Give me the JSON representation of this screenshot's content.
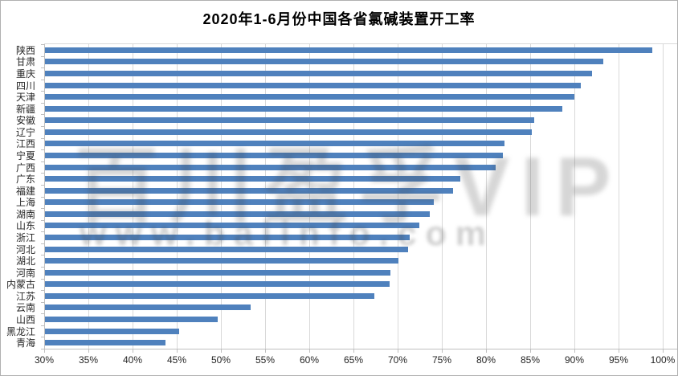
{
  "chart_data": {
    "type": "bar",
    "orientation": "horizontal",
    "title": "2020年1-6月份中国各省氯碱装置开工率",
    "categories": [
      "陕西",
      "甘肃",
      "重庆",
      "四川",
      "天津",
      "新疆",
      "安徽",
      "辽宁",
      "江西",
      "宁夏",
      "广西",
      "广东",
      "福建",
      "上海",
      "湖南",
      "山东",
      "浙江",
      "河北",
      "湖北",
      "河南",
      "内蒙古",
      "江苏",
      "云南",
      "山西",
      "黑龙江",
      "青海"
    ],
    "values": [
      98.7,
      93.2,
      91.9,
      90.6,
      89.9,
      88.5,
      85.4,
      85.1,
      82.0,
      81.8,
      81.0,
      77.0,
      76.2,
      74.0,
      73.5,
      72.4,
      71.3,
      71.1,
      70.0,
      69.1,
      69.0,
      67.3,
      53.3,
      49.5,
      45.2,
      43.6
    ],
    "unit": "%",
    "xlim": [
      30,
      100
    ],
    "x_tick_values": [
      30,
      35,
      40,
      45,
      50,
      55,
      60,
      65,
      70,
      75,
      80,
      85,
      90,
      95,
      100
    ],
    "x_tick_labels": [
      "30%",
      "35%",
      "40%",
      "45%",
      "50%",
      "55%",
      "60%",
      "65%",
      "70%",
      "75%",
      "80%",
      "85%",
      "90%",
      "95%",
      "100%"
    ],
    "grid": "vertical-on",
    "legend": "none",
    "bar_color": "#4F81BD"
  },
  "watermark": {
    "line1": "百川盈孚VIP",
    "line2": "www.baiinfo.com"
  },
  "colors": {
    "bar": "#4F81BD",
    "gridline": "#D9D9D9",
    "axis": "#BFBFBF",
    "text": "#262626",
    "border": "#B0B0B0"
  }
}
